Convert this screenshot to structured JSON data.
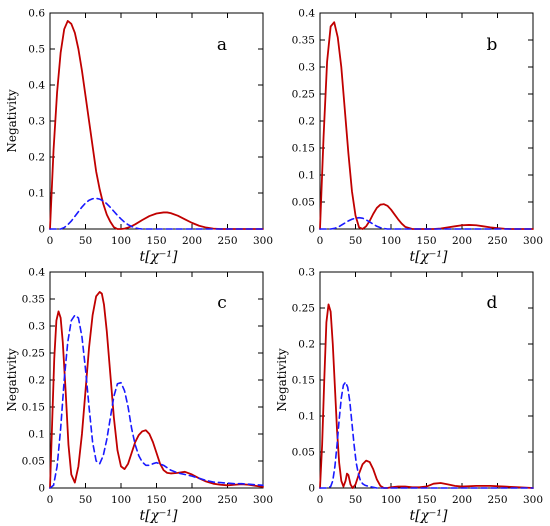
{
  "chart_data": [
    {
      "type": "line",
      "panel_label": "a",
      "ylabel": "Negativity",
      "xlabel": "t[χ⁻¹]",
      "xlim": [
        0,
        300
      ],
      "ylim": [
        0,
        0.6
      ],
      "xticks": [
        "0",
        "50",
        "100",
        "150",
        "200",
        "250",
        "300"
      ],
      "yticks": [
        "0",
        "0.1",
        "0.2",
        "0.3",
        "0.4",
        "0.5",
        "0.6"
      ],
      "series": [
        {
          "style": "solid",
          "color": "#c00000",
          "x": [
            0,
            5,
            10,
            15,
            20,
            25,
            30,
            35,
            40,
            45,
            50,
            55,
            60,
            65,
            70,
            75,
            80,
            85,
            90,
            95,
            100,
            105,
            110,
            115,
            120,
            130,
            140,
            150,
            160,
            165,
            170,
            180,
            190,
            200,
            210,
            220,
            230,
            240,
            250,
            260,
            270,
            280,
            290,
            300
          ],
          "y": [
            0,
            0.22,
            0.38,
            0.49,
            0.555,
            0.578,
            0.57,
            0.545,
            0.5,
            0.44,
            0.37,
            0.3,
            0.23,
            0.16,
            0.11,
            0.07,
            0.04,
            0.02,
            0.005,
            0,
            0,
            0.001,
            0.004,
            0.008,
            0.013,
            0.025,
            0.036,
            0.043,
            0.046,
            0.046,
            0.044,
            0.037,
            0.027,
            0.017,
            0.009,
            0.004,
            0.001,
            0,
            0,
            0,
            0,
            0,
            0,
            0
          ]
        },
        {
          "style": "dashed",
          "color": "#1a1aff",
          "x": [
            0,
            10,
            15,
            20,
            25,
            30,
            35,
            40,
            45,
            50,
            55,
            60,
            65,
            70,
            75,
            80,
            85,
            90,
            95,
            100,
            105,
            110,
            115,
            120,
            125,
            130,
            140,
            150,
            300
          ],
          "y": [
            0,
            0,
            0,
            0.004,
            0.012,
            0.022,
            0.035,
            0.048,
            0.061,
            0.072,
            0.08,
            0.084,
            0.085,
            0.083,
            0.078,
            0.07,
            0.06,
            0.049,
            0.038,
            0.028,
            0.019,
            0.012,
            0.007,
            0.003,
            0.001,
            0,
            0,
            0,
            0
          ]
        }
      ]
    },
    {
      "type": "line",
      "panel_label": "b",
      "ylabel": "",
      "xlabel": "t[χ⁻¹]",
      "xlim": [
        0,
        300
      ],
      "ylim": [
        0,
        0.4
      ],
      "xticks": [
        "0",
        "50",
        "100",
        "150",
        "200",
        "250",
        "300"
      ],
      "yticks": [
        "0",
        "0.05",
        "0.1",
        "0.15",
        "0.2",
        "0.25",
        "0.3",
        "0.35",
        "0.4"
      ],
      "series": [
        {
          "style": "solid",
          "color": "#c00000",
          "x": [
            0,
            5,
            10,
            15,
            20,
            25,
            30,
            35,
            40,
            45,
            50,
            55,
            60,
            65,
            70,
            75,
            80,
            85,
            90,
            95,
            100,
            105,
            110,
            115,
            120,
            130,
            140,
            150,
            160,
            170,
            180,
            190,
            200,
            210,
            220,
            230,
            240,
            250,
            260,
            270,
            280,
            290,
            300
          ],
          "y": [
            0,
            0.17,
            0.31,
            0.375,
            0.383,
            0.355,
            0.3,
            0.22,
            0.14,
            0.07,
            0.025,
            0.003,
            0,
            0.005,
            0.015,
            0.028,
            0.039,
            0.045,
            0.046,
            0.043,
            0.036,
            0.027,
            0.018,
            0.01,
            0.004,
            0,
            0,
            0,
            0,
            0.001,
            0.003,
            0.005,
            0.007,
            0.0075,
            0.007,
            0.005,
            0.003,
            0.0015,
            0.0005,
            0,
            0,
            0,
            0
          ]
        },
        {
          "style": "dashed",
          "color": "#1a1aff",
          "x": [
            0,
            10,
            15,
            20,
            25,
            30,
            35,
            40,
            45,
            50,
            55,
            60,
            65,
            70,
            75,
            80,
            85,
            90,
            95,
            100,
            105,
            110,
            300
          ],
          "y": [
            0,
            0,
            0,
            0.001,
            0.003,
            0.007,
            0.011,
            0.015,
            0.018,
            0.02,
            0.021,
            0.02,
            0.017,
            0.013,
            0.009,
            0.005,
            0.0025,
            0.001,
            0,
            0,
            0,
            0,
            0
          ]
        }
      ]
    },
    {
      "type": "line",
      "panel_label": "c",
      "ylabel": "Negativity",
      "xlabel": "t[χ⁻¹]",
      "xlim": [
        0,
        300
      ],
      "ylim": [
        0,
        0.4
      ],
      "xticks": [
        "0",
        "50",
        "100",
        "150",
        "200",
        "250",
        "300"
      ],
      "yticks": [
        "0",
        "0.05",
        "0.1",
        "0.15",
        "0.2",
        "0.25",
        "0.3",
        "0.35",
        "0.4"
      ],
      "series": [
        {
          "style": "solid",
          "color": "#c00000",
          "x": [
            0,
            3,
            6,
            9,
            12,
            15,
            18,
            22,
            26,
            30,
            35,
            40,
            45,
            50,
            55,
            60,
            65,
            70,
            73,
            76,
            80,
            85,
            90,
            95,
            100,
            105,
            110,
            115,
            120,
            125,
            130,
            135,
            140,
            145,
            150,
            155,
            160,
            165,
            170,
            180,
            190,
            200,
            210,
            220,
            230,
            240,
            250,
            260,
            270,
            280,
            290,
            300
          ],
          "y": [
            0,
            0.12,
            0.24,
            0.31,
            0.327,
            0.315,
            0.27,
            0.18,
            0.08,
            0.025,
            0.01,
            0.04,
            0.1,
            0.18,
            0.26,
            0.32,
            0.355,
            0.363,
            0.36,
            0.34,
            0.29,
            0.21,
            0.13,
            0.07,
            0.04,
            0.035,
            0.045,
            0.065,
            0.085,
            0.098,
            0.105,
            0.107,
            0.1,
            0.085,
            0.065,
            0.045,
            0.033,
            0.028,
            0.027,
            0.028,
            0.03,
            0.025,
            0.018,
            0.012,
            0.008,
            0.006,
            0.005,
            0.006,
            0.007,
            0.006,
            0.004,
            0.002
          ]
        },
        {
          "style": "dashed",
          "color": "#1a1aff",
          "x": [
            0,
            5,
            10,
            15,
            20,
            25,
            30,
            35,
            40,
            45,
            50,
            55,
            60,
            65,
            70,
            75,
            80,
            85,
            90,
            95,
            100,
            105,
            110,
            115,
            120,
            125,
            130,
            135,
            140,
            145,
            150,
            160,
            170,
            180,
            190,
            200,
            210,
            220,
            230,
            240,
            250,
            260,
            270,
            280,
            290,
            300
          ],
          "y": [
            0,
            0.005,
            0.04,
            0.11,
            0.2,
            0.27,
            0.31,
            0.32,
            0.315,
            0.28,
            0.22,
            0.15,
            0.085,
            0.05,
            0.045,
            0.06,
            0.09,
            0.13,
            0.17,
            0.193,
            0.195,
            0.18,
            0.15,
            0.11,
            0.08,
            0.06,
            0.048,
            0.042,
            0.042,
            0.045,
            0.047,
            0.042,
            0.033,
            0.028,
            0.025,
            0.022,
            0.018,
            0.014,
            0.011,
            0.01,
            0.009,
            0.008,
            0.008,
            0.007,
            0.006,
            0.005
          ]
        }
      ]
    },
    {
      "type": "line",
      "panel_label": "d",
      "ylabel": "Negativity",
      "xlabel": "t[χ⁻¹]",
      "xlim": [
        0,
        300
      ],
      "ylim": [
        0,
        0.3
      ],
      "xticks": [
        "0",
        "50",
        "100",
        "150",
        "200",
        "250",
        "300"
      ],
      "yticks": [
        "0",
        "0.05",
        "0.1",
        "0.15",
        "0.2",
        "0.25",
        "0.3"
      ],
      "series": [
        {
          "style": "solid",
          "color": "#c00000",
          "x": [
            0,
            3,
            6,
            9,
            12,
            15,
            18,
            21,
            24,
            27,
            30,
            33,
            36,
            38,
            40,
            43,
            46,
            50,
            55,
            60,
            65,
            70,
            75,
            80,
            85,
            90,
            95,
            100,
            110,
            120,
            130,
            140,
            150,
            160,
            170,
            180,
            190,
            200,
            220,
            240,
            260,
            280,
            300
          ],
          "y": [
            0,
            0.06,
            0.15,
            0.23,
            0.255,
            0.245,
            0.2,
            0.14,
            0.08,
            0.035,
            0.01,
            0.002,
            0.01,
            0.02,
            0.018,
            0.005,
            0,
            0.005,
            0.02,
            0.033,
            0.038,
            0.036,
            0.026,
            0.012,
            0.003,
            0,
            0,
            0.001,
            0.002,
            0.002,
            0.001,
            0.001,
            0.002,
            0.006,
            0.007,
            0.005,
            0.003,
            0.002,
            0.003,
            0.003,
            0.002,
            0.001,
            0
          ]
        },
        {
          "style": "dashed",
          "color": "#1a1aff",
          "x": [
            0,
            10,
            15,
            18,
            21,
            24,
            27,
            30,
            33,
            36,
            39,
            42,
            45,
            48,
            51,
            54,
            57,
            60,
            63,
            66,
            70,
            75,
            80,
            90,
            100,
            150,
            200,
            300
          ],
          "y": [
            0,
            0,
            0.002,
            0.01,
            0.03,
            0.06,
            0.095,
            0.125,
            0.143,
            0.147,
            0.14,
            0.12,
            0.09,
            0.06,
            0.035,
            0.02,
            0.01,
            0.006,
            0.004,
            0.003,
            0.002,
            0.001,
            0,
            0,
            0,
            0,
            0,
            0
          ]
        }
      ]
    }
  ]
}
